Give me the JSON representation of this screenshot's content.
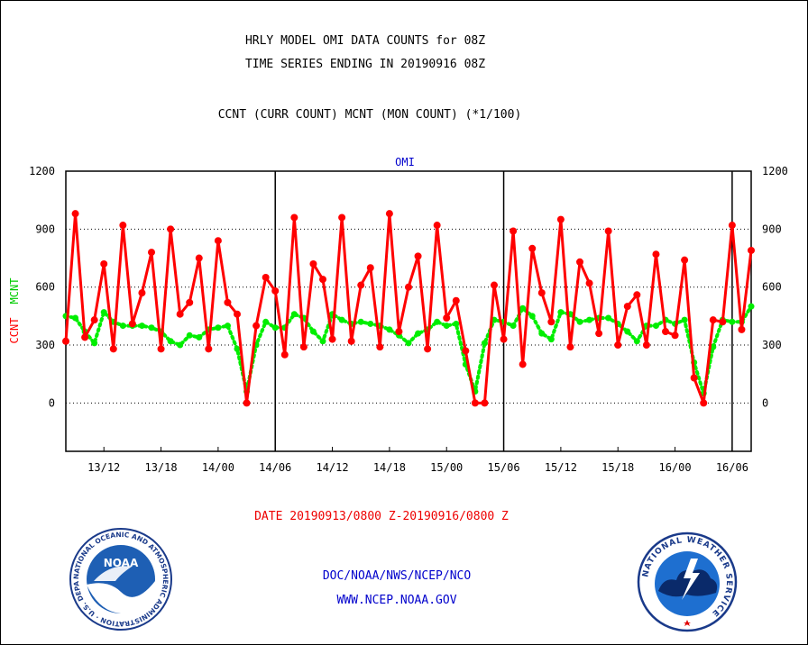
{
  "header": {
    "title_line1": "HRLY MODEL OMI DATA COUNTS for 08Z",
    "title_line2": "TIME SERIES ENDING IN 20190916 08Z",
    "subtitle": "CCNT (CURR COUNT) MCNT (MON COUNT) (*1/100)"
  },
  "footer": {
    "date_range": "DATE 20190913/0800 Z-20190916/0800 Z",
    "org": "DOC/NOAA/NWS/NCEP/NCO",
    "url": "WWW.NCEP.NOAA.GOV"
  },
  "logos": {
    "noaa_text": "NOAA",
    "noaa_ring": "NATIONAL OCEANIC AND ATMOSPHERIC ADMINISTRATION · U.S. DEPARTMENT OF COMMERCE ·",
    "nws_ring": "NATIONAL WEATHER SERVICE"
  },
  "colors": {
    "ccnt": "#ff0000",
    "mcnt": "#00ee00",
    "axis": "#000000",
    "panel_title": "#0000cc"
  },
  "chart_data": {
    "type": "line",
    "panel_title": "OMI",
    "ylabel_left": "CCNT",
    "ylabel_right": "MCNT",
    "ylim": [
      -250,
      1200
    ],
    "yticks": [
      0,
      300,
      600,
      900,
      1200
    ],
    "xlim": [
      0,
      72
    ],
    "x_ticks": [
      {
        "label": "13/12",
        "x": 4
      },
      {
        "label": "13/18",
        "x": 10
      },
      {
        "label": "14/00",
        "x": 16
      },
      {
        "label": "14/06",
        "x": 22
      },
      {
        "label": "14/12",
        "x": 28
      },
      {
        "label": "14/18",
        "x": 34
      },
      {
        "label": "15/00",
        "x": 40
      },
      {
        "label": "15/06",
        "x": 46
      },
      {
        "label": "15/12",
        "x": 52
      },
      {
        "label": "15/18",
        "x": 58
      },
      {
        "label": "16/00",
        "x": 64
      },
      {
        "label": "16/06",
        "x": 70
      }
    ],
    "day_boundaries": [
      22,
      46,
      70
    ],
    "grid": "horizontal dotted",
    "series": [
      {
        "name": "CCNT",
        "values": [
          320,
          980,
          340,
          430,
          720,
          280,
          920,
          410,
          570,
          780,
          280,
          900,
          460,
          520,
          750,
          280,
          840,
          520,
          460,
          0,
          400,
          650,
          580,
          250,
          960,
          290,
          720,
          640,
          330,
          960,
          320,
          610,
          700,
          290,
          980,
          370,
          600,
          760,
          280,
          920,
          440,
          530,
          270,
          0,
          0,
          610,
          330,
          890,
          200,
          800,
          570,
          420,
          950,
          290,
          730,
          620,
          360,
          890,
          300,
          500,
          560,
          300,
          770,
          370,
          350,
          740,
          130,
          0,
          430,
          420,
          920,
          380,
          790
        ]
      },
      {
        "name": "MCNT",
        "values": [
          450,
          440,
          370,
          310,
          470,
          420,
          400,
          400,
          400,
          390,
          370,
          320,
          300,
          350,
          340,
          380,
          390,
          400,
          280,
          60,
          300,
          420,
          390,
          390,
          460,
          440,
          370,
          320,
          460,
          430,
          410,
          420,
          410,
          400,
          380,
          350,
          310,
          360,
          380,
          420,
          400,
          410,
          200,
          60,
          310,
          430,
          420,
          400,
          490,
          450,
          360,
          330,
          470,
          460,
          420,
          430,
          440,
          440,
          410,
          370,
          320,
          400,
          400,
          430,
          410,
          430,
          210,
          50,
          290,
          430,
          420,
          420,
          500
        ]
      }
    ]
  }
}
